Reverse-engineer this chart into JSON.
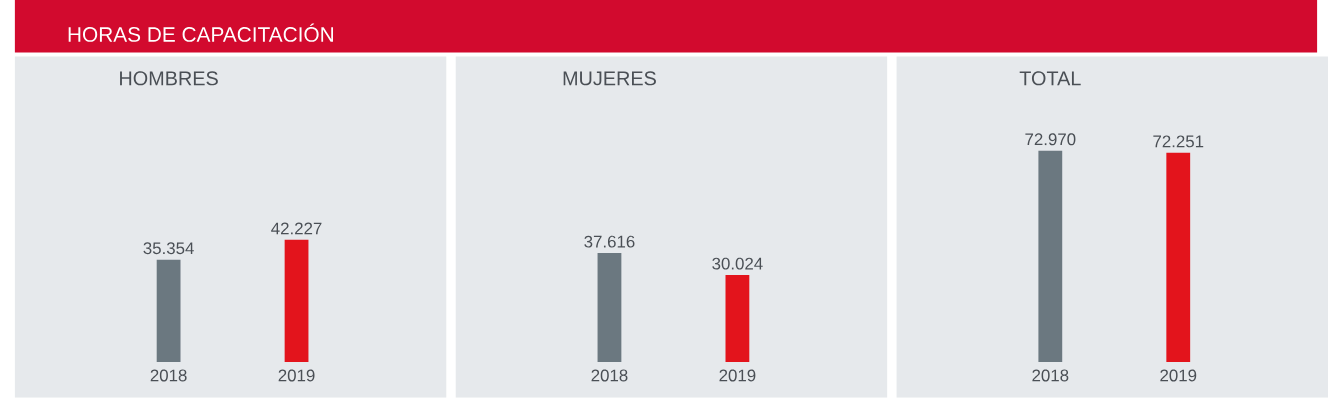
{
  "chart_data": [
    {
      "type": "bar",
      "title": "HOMBRES",
      "annotations": [
        "HORAS DE CAPACITACIÓN"
      ],
      "categories": [
        "2018",
        "2019"
      ],
      "values": [
        35354,
        42227
      ],
      "value_labels": [
        "35.354",
        "42.227"
      ],
      "colors": [
        "#6b7880",
        "#e3141c"
      ]
    },
    {
      "type": "bar",
      "title": "MUJERES",
      "categories": [
        "2018",
        "2019"
      ],
      "values": [
        37616,
        30024
      ],
      "value_labels": [
        "37.616",
        "30.024"
      ],
      "colors": [
        "#6b7880",
        "#e3141c"
      ]
    },
    {
      "type": "bar",
      "title": "TOTAL",
      "categories": [
        "2018",
        "2019"
      ],
      "values": [
        72970,
        72251
      ],
      "value_labels": [
        "72.970",
        "72.251"
      ],
      "colors": [
        "#6b7880",
        "#e3141c"
      ]
    }
  ]
}
